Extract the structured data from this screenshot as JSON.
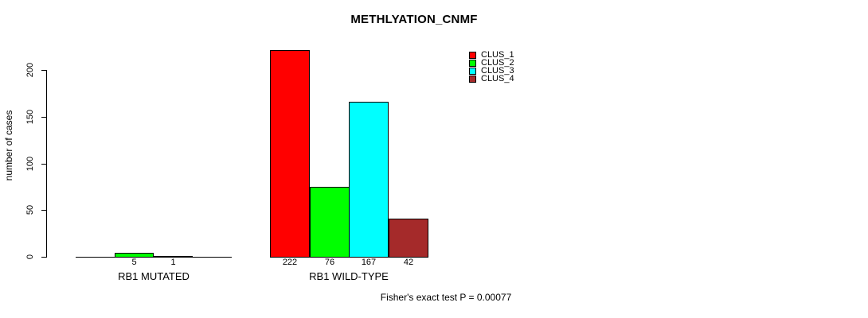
{
  "chart_data": {
    "type": "bar",
    "title": "METHLYATION_CNMF",
    "ylabel": "number of cases",
    "xlabel": "",
    "ylim": [
      0,
      222
    ],
    "yticks": [
      0,
      50,
      100,
      150,
      200
    ],
    "grid": false,
    "legend_position": "top-right",
    "series": [
      {
        "name": "CLUS_1",
        "color": "#ff0000"
      },
      {
        "name": "CLUS_2",
        "color": "#00ff00"
      },
      {
        "name": "CLUS_3",
        "color": "#00ffff"
      },
      {
        "name": "CLUS_4",
        "color": "#a52a2a"
      }
    ],
    "groups": [
      {
        "label": "RB1 MUTATED",
        "values": [
          0,
          5,
          1,
          0
        ],
        "bar_labels": [
          "",
          "5",
          "1",
          ""
        ]
      },
      {
        "label": "RB1 WILD-TYPE",
        "values": [
          222,
          76,
          167,
          42
        ],
        "bar_labels": [
          "222",
          "76",
          "167",
          "42"
        ]
      }
    ],
    "annotation": "Fisher's exact test P = 0.00077"
  }
}
